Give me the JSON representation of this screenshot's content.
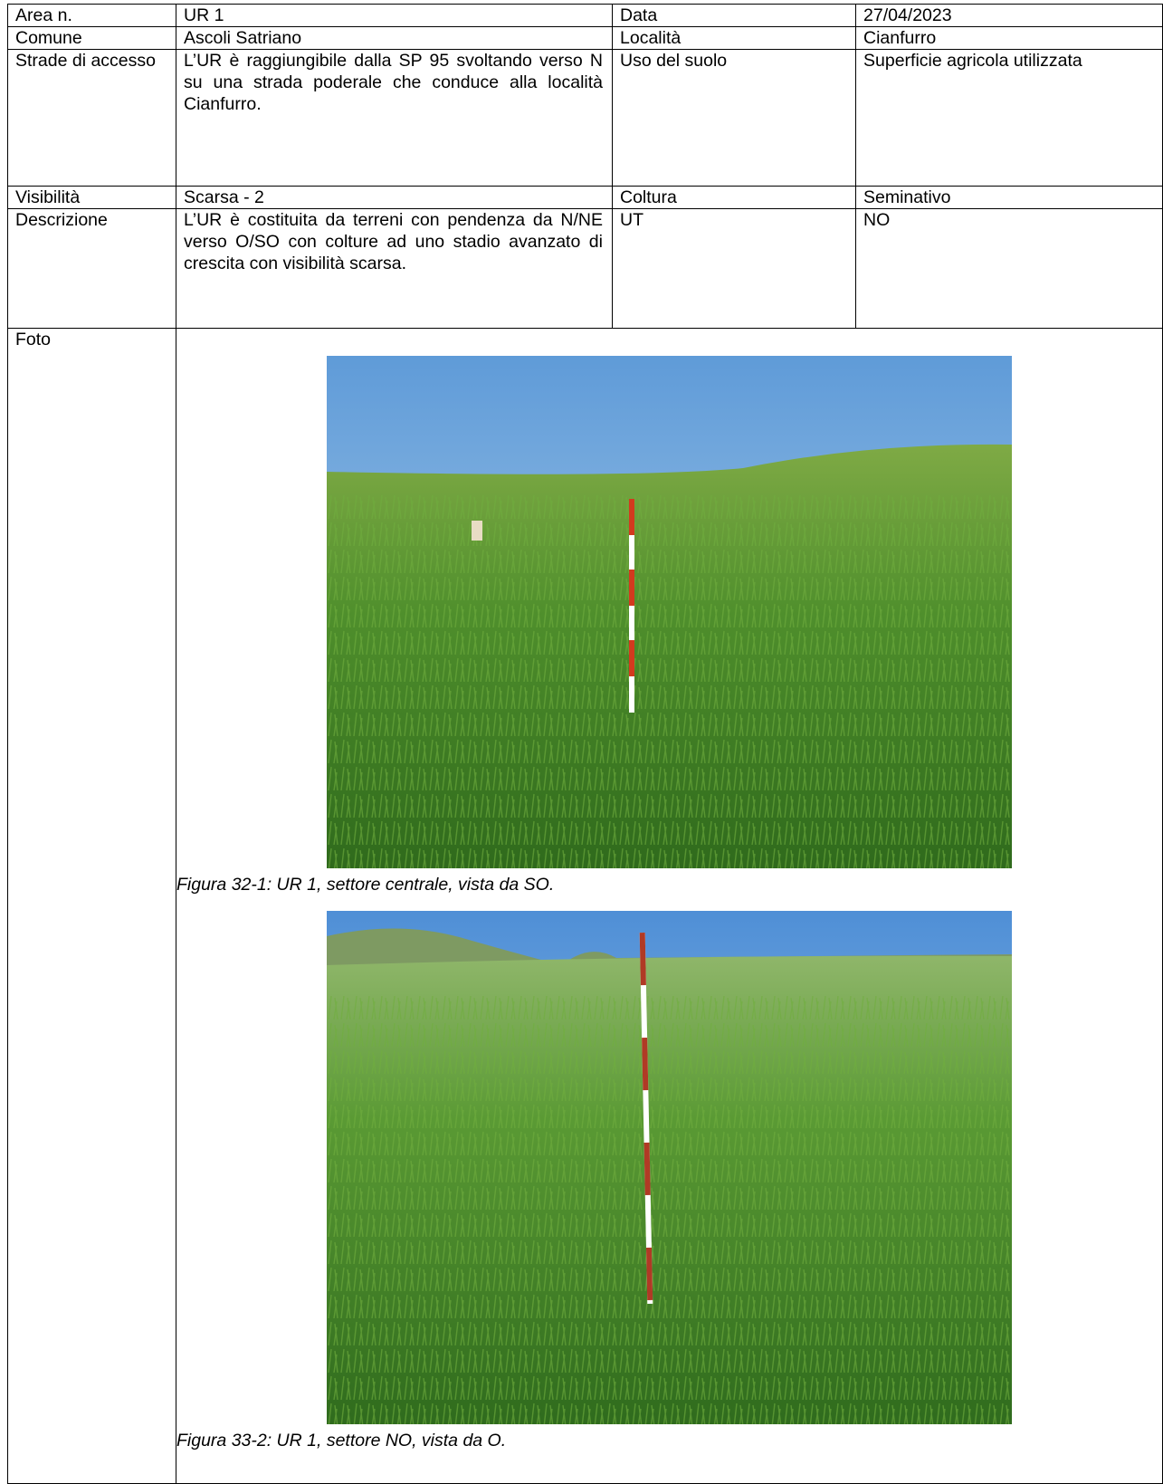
{
  "table": {
    "rows": [
      [
        "Area n.",
        "UR 1",
        "Data",
        "27/04/2023"
      ],
      [
        "Comune",
        "Ascoli Satriano",
        "Località",
        "Cianfurro"
      ],
      [
        "Strade di accesso",
        "L’UR è raggiungibile dalla SP 95 svoltando verso N su una strada poderale che conduce alla località Cianfurro.",
        "Uso del suolo",
        "Superficie agricola utilizzata"
      ],
      [
        "Visibilità",
        "Scarsa - 2",
        "Coltura",
        "Seminativo"
      ],
      [
        "Descrizione",
        "L’UR è costituita da terreni con pendenza da N/NE verso O/SO con colture ad uno stadio avanzato di crescita con visibilità scarsa.",
        "UT",
        "NO"
      ]
    ],
    "photo_row": {
      "label": "Foto",
      "figures": [
        {
          "caption": "Figura 32-1: UR 1, settore centrale, vista da SO."
        },
        {
          "caption": "Figura 33-2: UR 1, settore NO, vista da O."
        }
      ]
    }
  }
}
